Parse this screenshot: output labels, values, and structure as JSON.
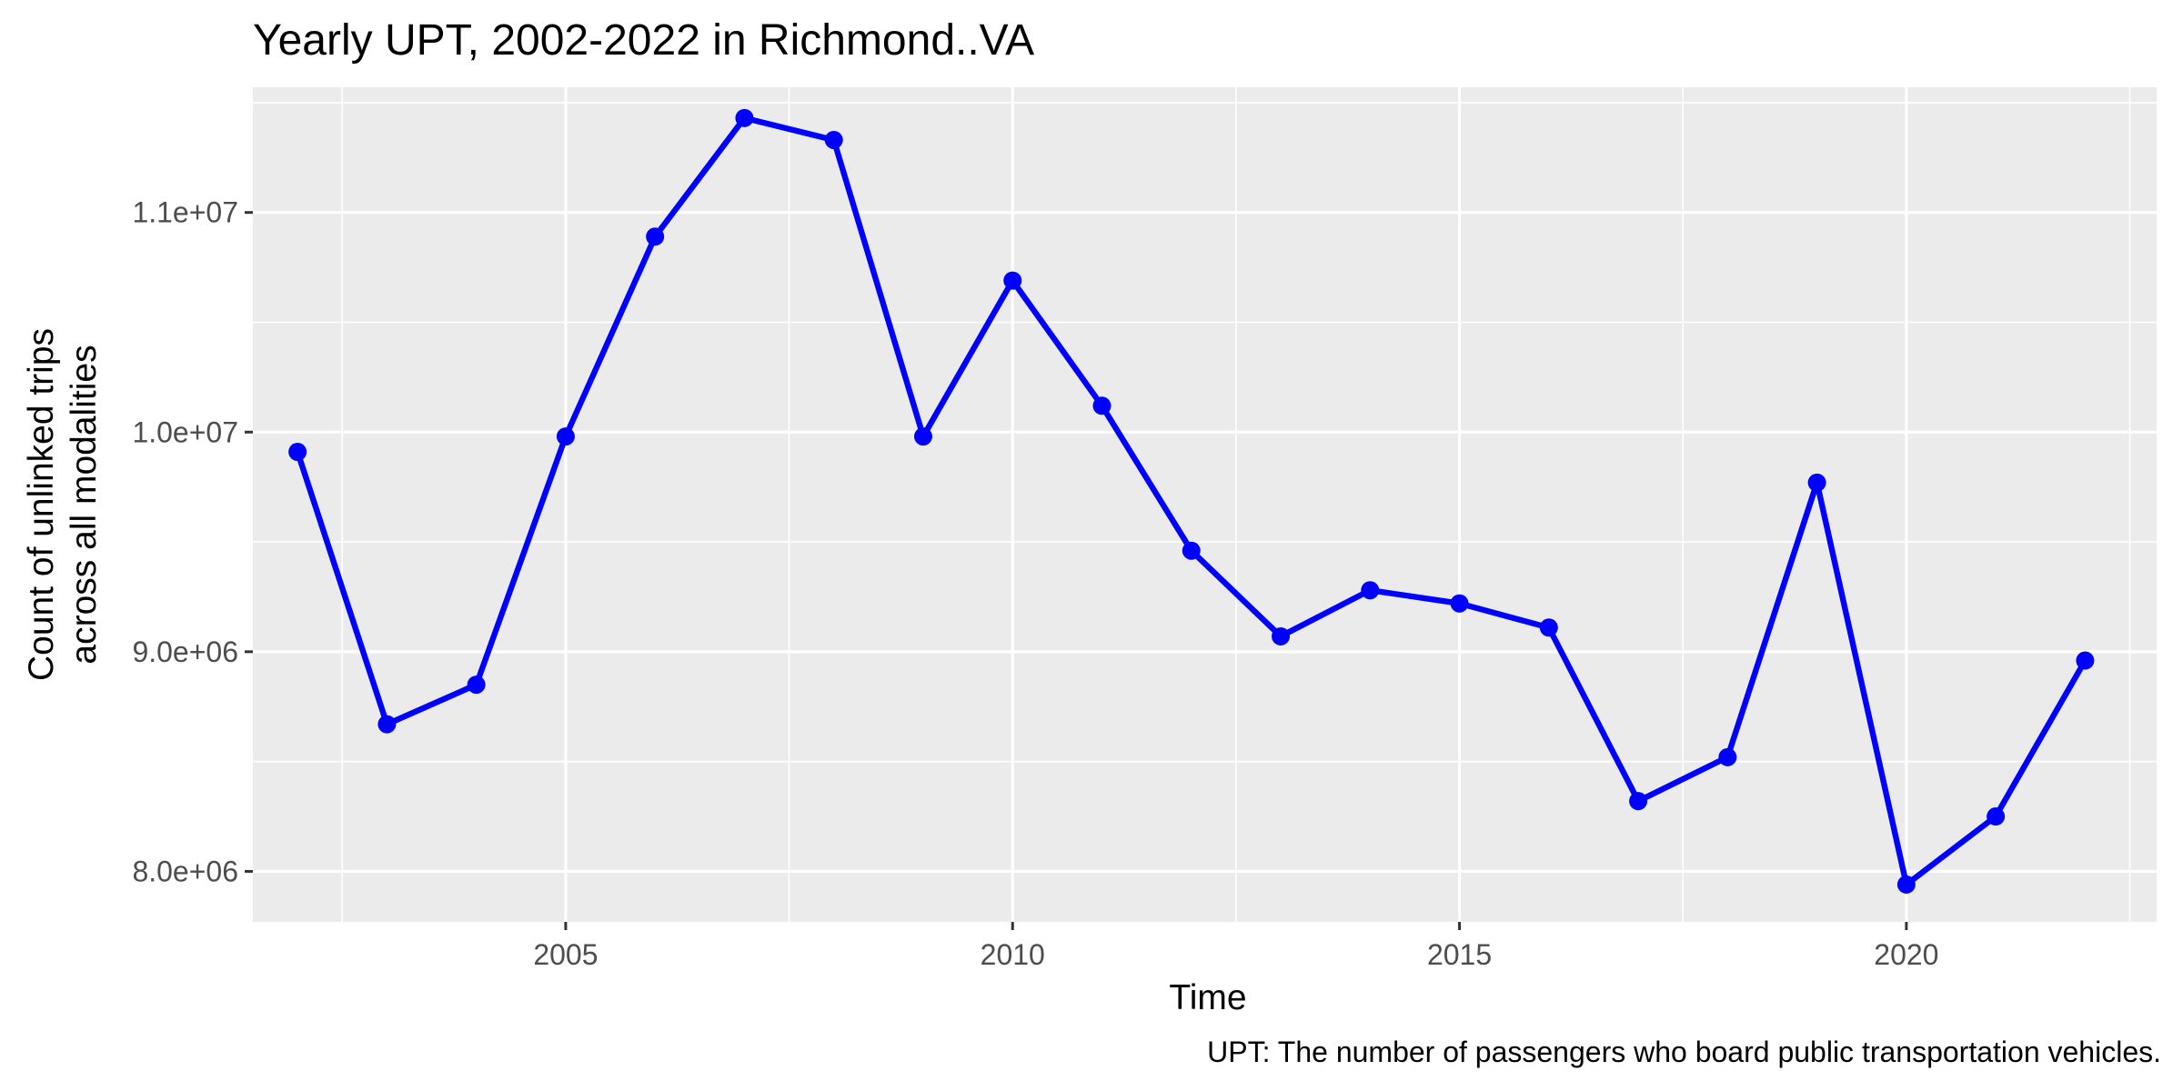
{
  "chart_data": {
    "type": "line",
    "title": "Yearly UPT, 2002-2022 in Richmond..VA",
    "xlabel": "Time",
    "ylabel": [
      "Count of unlinked trips",
      "across all modalities"
    ],
    "caption": "UPT: The number of passengers who board public transportation vehicles.",
    "xlim": [
      2001.5,
      2022.8
    ],
    "ylim": [
      7770000,
      11570000
    ],
    "x_ticks": [
      2005,
      2010,
      2015,
      2020
    ],
    "y_ticks": [
      8000000,
      9000000,
      10000000,
      11000000
    ],
    "y_tick_labels": [
      "8.0e+06",
      "9.0e+06",
      "1.0e+07",
      "1.1e+07"
    ],
    "grid": true,
    "line_color": "#0000ff",
    "panel_background": "#ebebeb",
    "grid_color": "#ffffff",
    "series": [
      {
        "x": [
          2002,
          2003,
          2004,
          2005,
          2006,
          2007,
          2008,
          2009,
          2010,
          2011,
          2012,
          2013,
          2014,
          2015,
          2016,
          2017,
          2018,
          2019,
          2020,
          2021,
          2022
        ],
        "values": [
          9910000,
          8670000,
          8850000,
          9980000,
          10890000,
          11430000,
          11330000,
          9980000,
          10690000,
          10120000,
          9460000,
          9070000,
          9280000,
          9220000,
          9110000,
          8320000,
          8520000,
          9770000,
          7940000,
          8250000,
          8960000
        ]
      }
    ]
  }
}
